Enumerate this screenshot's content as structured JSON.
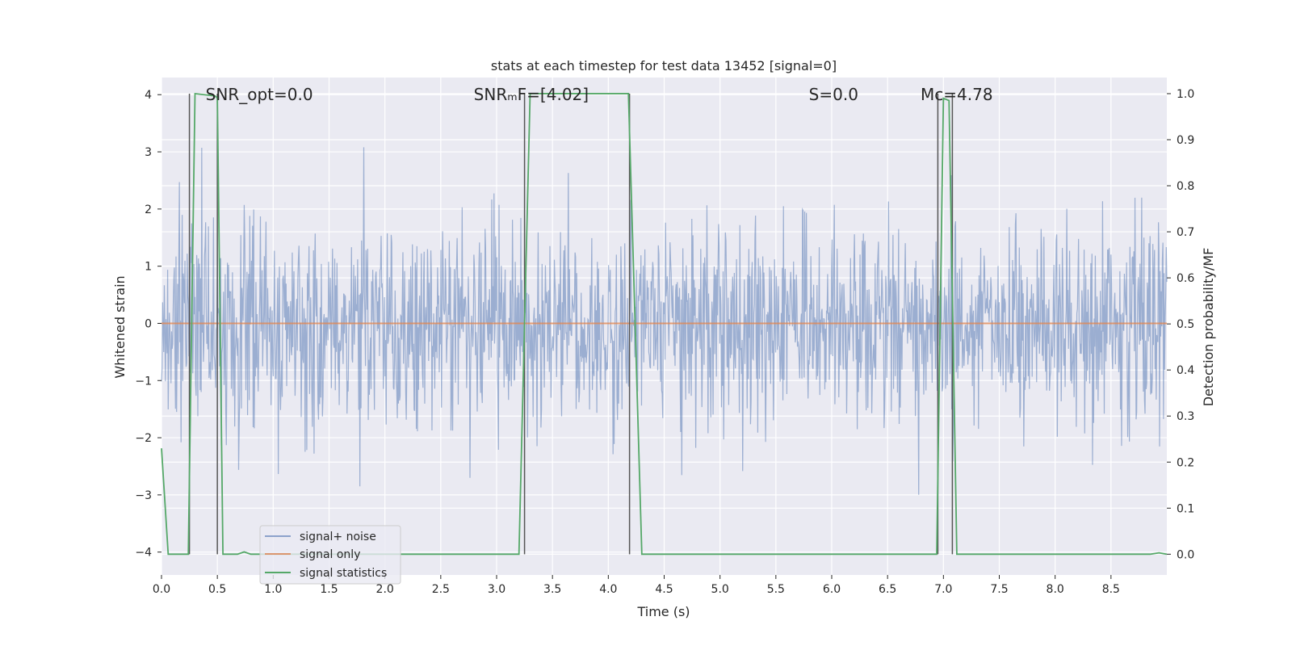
{
  "chart_data": {
    "type": "line",
    "title": "stats at each timestep for test data 13452 [signal=0]",
    "xlabel": "Time (s)",
    "ylabel": "Whitened strain",
    "y2label": "Detection probability/MF",
    "xlim": [
      0.0,
      9.0
    ],
    "ylim": [
      -4.4,
      4.3
    ],
    "y2lim": [
      -0.045,
      1.035
    ],
    "grid": true,
    "xticks": [
      0.0,
      0.5,
      1.0,
      1.5,
      2.0,
      2.5,
      3.0,
      3.5,
      4.0,
      4.5,
      5.0,
      5.5,
      6.0,
      6.5,
      7.0,
      7.5,
      8.0,
      8.5
    ],
    "xtick_labels": [
      "0.0",
      "0.5",
      "1.0",
      "1.5",
      "2.0",
      "2.5",
      "3.0",
      "3.5",
      "4.0",
      "4.5",
      "5.0",
      "5.5",
      "6.0",
      "6.5",
      "7.0",
      "7.5",
      "8.0",
      "8.5"
    ],
    "yticks": [
      -4,
      -3,
      -2,
      -1,
      0,
      1,
      2,
      3,
      4
    ],
    "ytick_labels": [
      "−4",
      "−3",
      "−2",
      "−1",
      "0",
      "1",
      "2",
      "3",
      "4"
    ],
    "y2ticks": [
      0.0,
      0.1,
      0.2,
      0.3,
      0.4,
      0.5,
      0.6,
      0.7,
      0.8,
      0.9,
      1.0
    ],
    "y2tick_labels": [
      "0.0",
      "0.1",
      "0.2",
      "0.3",
      "0.4",
      "0.5",
      "0.6",
      "0.7",
      "0.8",
      "0.9",
      "1.0"
    ],
    "annotations": [
      {
        "text": "SNR_opt=0.0",
        "x": 0.2,
        "y": 4.0
      },
      {
        "text": "SNRₘF=[4.02]",
        "x": 2.6,
        "y": 4.0
      },
      {
        "text": "S=0.0",
        "x": 5.6,
        "y": 4.0
      },
      {
        "text": "Mᴄ=4.78",
        "x": 6.6,
        "y": 4.0
      }
    ],
    "vertical_lines": [
      0.25,
      0.5,
      3.25,
      4.19,
      6.95,
      7.08
    ],
    "series": [
      {
        "name": "signal+ noise",
        "color": "#4c72b0",
        "axis": "left",
        "description": "whitened noise, approx. Gaussian, sigma ~0.9, range about -4 to 4",
        "amplitude_sigma": 0.9,
        "sample_count": 1800
      },
      {
        "name": "signal only",
        "color": "#dd8452",
        "axis": "left",
        "x": [
          0.0,
          9.0
        ],
        "y": [
          0.0,
          0.0
        ]
      },
      {
        "name": "signal statistics",
        "color": "#55a868",
        "axis": "right",
        "x": [
          0.0,
          0.06,
          0.24,
          0.3,
          0.48,
          0.5,
          0.55,
          0.68,
          0.74,
          0.8,
          3.2,
          3.3,
          4.18,
          4.3,
          6.94,
          7.0,
          7.05,
          7.12,
          8.85,
          8.93,
          9.0
        ],
        "y": [
          0.23,
          0.0,
          0.0,
          1.0,
          0.995,
          0.99,
          0.0,
          0.0,
          0.005,
          0.0,
          0.0,
          1.0,
          1.0,
          0.0,
          0.0,
          0.99,
          0.985,
          0.0,
          0.0,
          0.003,
          0.0
        ]
      }
    ],
    "legend": {
      "placement": "lower-left",
      "entries": [
        "signal+ noise",
        "signal only",
        "signal statistics"
      ]
    }
  }
}
